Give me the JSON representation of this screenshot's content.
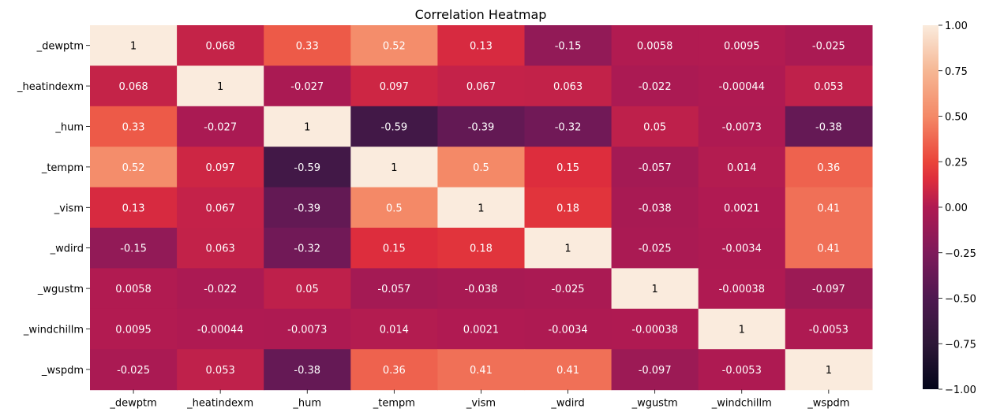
{
  "chart_data": {
    "type": "heatmap",
    "title": "Correlation Heatmap",
    "variables": [
      "_dewptm",
      "_heatindexm",
      "_hum",
      "_tempm",
      "_vism",
      "_wdird",
      "_wgustm",
      "_windchillm",
      "_wspdm"
    ],
    "cell_labels": [
      [
        "1",
        "0.068",
        "0.33",
        "0.52",
        "0.13",
        "-0.15",
        "0.0058",
        "0.0095",
        "-0.025"
      ],
      [
        "0.068",
        "1",
        "-0.027",
        "0.097",
        "0.067",
        "0.063",
        "-0.022",
        "-0.00044",
        "0.053"
      ],
      [
        "0.33",
        "-0.027",
        "1",
        "-0.59",
        "-0.39",
        "-0.32",
        "0.05",
        "-0.0073",
        "-0.38"
      ],
      [
        "0.52",
        "0.097",
        "-0.59",
        "1",
        "0.5",
        "0.15",
        "-0.057",
        "0.014",
        "0.36"
      ],
      [
        "0.13",
        "0.067",
        "-0.39",
        "0.5",
        "1",
        "0.18",
        "-0.038",
        "0.0021",
        "0.41"
      ],
      [
        "-0.15",
        "0.063",
        "-0.32",
        "0.15",
        "0.18",
        "1",
        "-0.025",
        "-0.0034",
        "0.41"
      ],
      [
        "0.0058",
        "-0.022",
        "0.05",
        "-0.057",
        "-0.038",
        "-0.025",
        "1",
        "-0.00038",
        "-0.097"
      ],
      [
        "0.0095",
        "-0.00044",
        "-0.0073",
        "0.014",
        "0.0021",
        "-0.0034",
        "-0.00038",
        "1",
        "-0.0053"
      ],
      [
        "-0.025",
        "0.053",
        "-0.38",
        "0.36",
        "0.41",
        "0.41",
        "-0.097",
        "-0.0053",
        "1"
      ]
    ],
    "colorbar": {
      "min": -1.0,
      "max": 1.0,
      "ticks": [
        "1.00",
        "0.75",
        "0.50",
        "0.25",
        "0.00",
        "−0.25",
        "−0.50",
        "−0.75",
        "−1.00"
      ],
      "tick_values": [
        1.0,
        0.75,
        0.5,
        0.25,
        0.0,
        -0.25,
        -0.5,
        -0.75,
        -1.0
      ]
    },
    "colormap": "rocket",
    "grid": false
  }
}
